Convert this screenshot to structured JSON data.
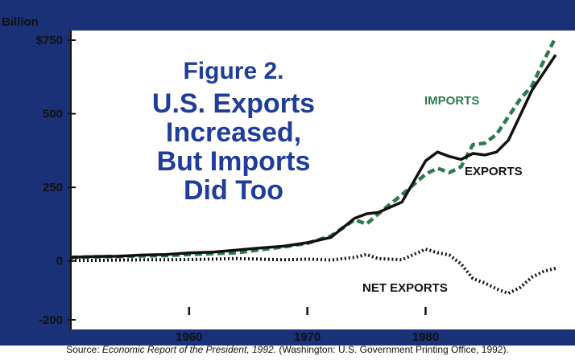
{
  "chart_data": {
    "type": "line",
    "title": [
      "Figure 2.",
      "U.S. Exports",
      "Increased,",
      "But Imports",
      "Did Too"
    ],
    "ylabel": "Billion",
    "y_tick_labels": [
      "$750",
      "500",
      "250",
      "0",
      "-200"
    ],
    "y_ticks": [
      750,
      500,
      250,
      0,
      -200
    ],
    "x_tick_labels": [
      "1960",
      "1970",
      "1980"
    ],
    "x_ticks": [
      1960,
      1970,
      1980
    ],
    "xlim": [
      1950,
      1991
    ],
    "ylim": [
      -200,
      800
    ],
    "grid": false,
    "series": [
      {
        "name": "IMPORTS",
        "color": "#2e7a4f",
        "style": "dashed",
        "x": [
          1950,
          1952,
          1954,
          1956,
          1958,
          1960,
          1962,
          1964,
          1966,
          1968,
          1970,
          1972,
          1974,
          1975,
          1976,
          1978,
          1980,
          1981,
          1982,
          1983,
          1984,
          1985,
          1986,
          1987,
          1988,
          1989,
          1990,
          1991
        ],
        "values": [
          12,
          14,
          15,
          17,
          18,
          22,
          25,
          28,
          38,
          48,
          60,
          85,
          140,
          125,
          160,
          225,
          295,
          315,
          300,
          320,
          395,
          400,
          430,
          490,
          550,
          595,
          680,
          760
        ]
      },
      {
        "name": "EXPORTS",
        "color": "#111111",
        "style": "solid",
        "x": [
          1950,
          1952,
          1954,
          1956,
          1958,
          1960,
          1962,
          1964,
          1966,
          1968,
          1970,
          1972,
          1974,
          1975,
          1976,
          1978,
          1980,
          1981,
          1982,
          1983,
          1984,
          1985,
          1986,
          1987,
          1988,
          1989,
          1990,
          1991
        ],
        "values": [
          12,
          15,
          16,
          20,
          22,
          27,
          30,
          37,
          44,
          50,
          62,
          80,
          145,
          160,
          165,
          200,
          340,
          370,
          355,
          345,
          365,
          360,
          370,
          410,
          495,
          580,
          640,
          700
        ]
      },
      {
        "name": "NET EXPORTS",
        "color": "#111111",
        "style": "dotted",
        "x": [
          1950,
          1952,
          1954,
          1956,
          1958,
          1960,
          1962,
          1964,
          1966,
          1968,
          1970,
          1972,
          1974,
          1975,
          1976,
          1978,
          1980,
          1981,
          1982,
          1983,
          1984,
          1985,
          1986,
          1987,
          1988,
          1989,
          1990,
          1991
        ],
        "values": [
          2,
          2,
          3,
          4,
          4,
          5,
          6,
          8,
          6,
          4,
          6,
          3,
          12,
          22,
          8,
          4,
          40,
          28,
          20,
          -10,
          -60,
          -75,
          -95,
          -110,
          -90,
          -55,
          -35,
          -25
        ]
      }
    ],
    "series_labels": [
      "IMPORTS",
      "EXPORTS",
      "NET EXPORTS"
    ],
    "source": {
      "prefix": "Source: ",
      "work": "Economic Report of the President, 1992.",
      "rest": " (Washington: U.S. Government Printing Office, 1992)."
    },
    "colors": {
      "background": "#1a3178",
      "plot": "#ffffff",
      "title": "#1f3d99",
      "imports": "#2e7a4f",
      "exports": "#111111",
      "net_exports": "#111111"
    }
  }
}
